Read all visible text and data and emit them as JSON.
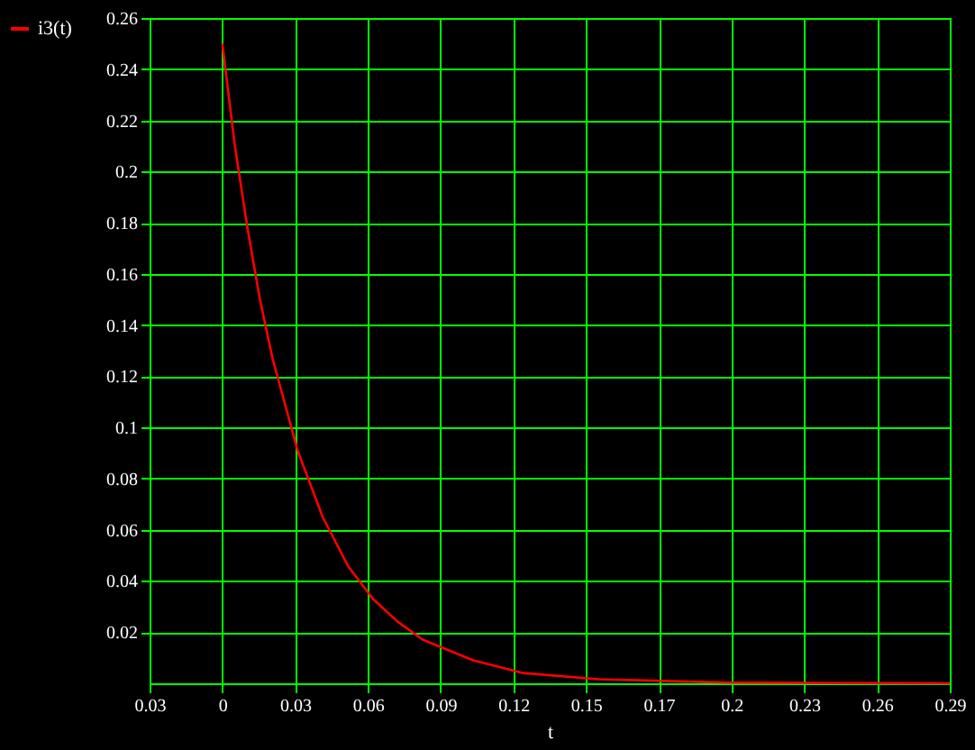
{
  "chart_data": {
    "type": "line",
    "xlabel": "t",
    "legend": "left",
    "x": [
      0.0,
      0.005,
      0.01,
      0.015,
      0.02,
      0.03,
      0.04,
      0.05,
      0.06,
      0.07,
      0.08,
      0.1,
      0.12,
      0.15,
      0.2,
      0.25,
      0.29
    ],
    "series": [
      {
        "name": "i3(t)",
        "color": "#ff0000",
        "values": [
          0.25,
          0.21,
          0.178,
          0.15,
          0.127,
          0.091,
          0.065,
          0.046,
          0.033,
          0.024,
          0.017,
          0.009,
          0.004,
          0.0016,
          0.0003,
          0.0001,
          0.0
        ]
      }
    ],
    "xlim": [
      -0.029,
      0.29
    ],
    "xticks": [
      {
        "value": -0.029,
        "label": "0.03"
      },
      0,
      {
        "value": 0.029,
        "label": "0.03"
      },
      {
        "value": 0.058,
        "label": "0.06"
      },
      {
        "value": 0.087,
        "label": "0.09"
      },
      {
        "value": 0.116,
        "label": "0.12"
      },
      {
        "value": 0.145,
        "label": "0.15"
      },
      {
        "value": 0.174,
        "label": "0.17"
      },
      {
        "value": 0.203,
        "label": "0.2"
      },
      {
        "value": 0.232,
        "label": "0.23"
      },
      {
        "value": 0.261,
        "label": "0.26"
      },
      0.29
    ],
    "ylim": [
      0,
      0.26
    ],
    "yticks": [
      0.02,
      0.04,
      0.06,
      0.08,
      0.1,
      0.12,
      0.14,
      0.16,
      0.18,
      0.2,
      0.22,
      0.24,
      0.26
    ],
    "grid": true,
    "marker": "none",
    "line_style": "solid"
  }
}
